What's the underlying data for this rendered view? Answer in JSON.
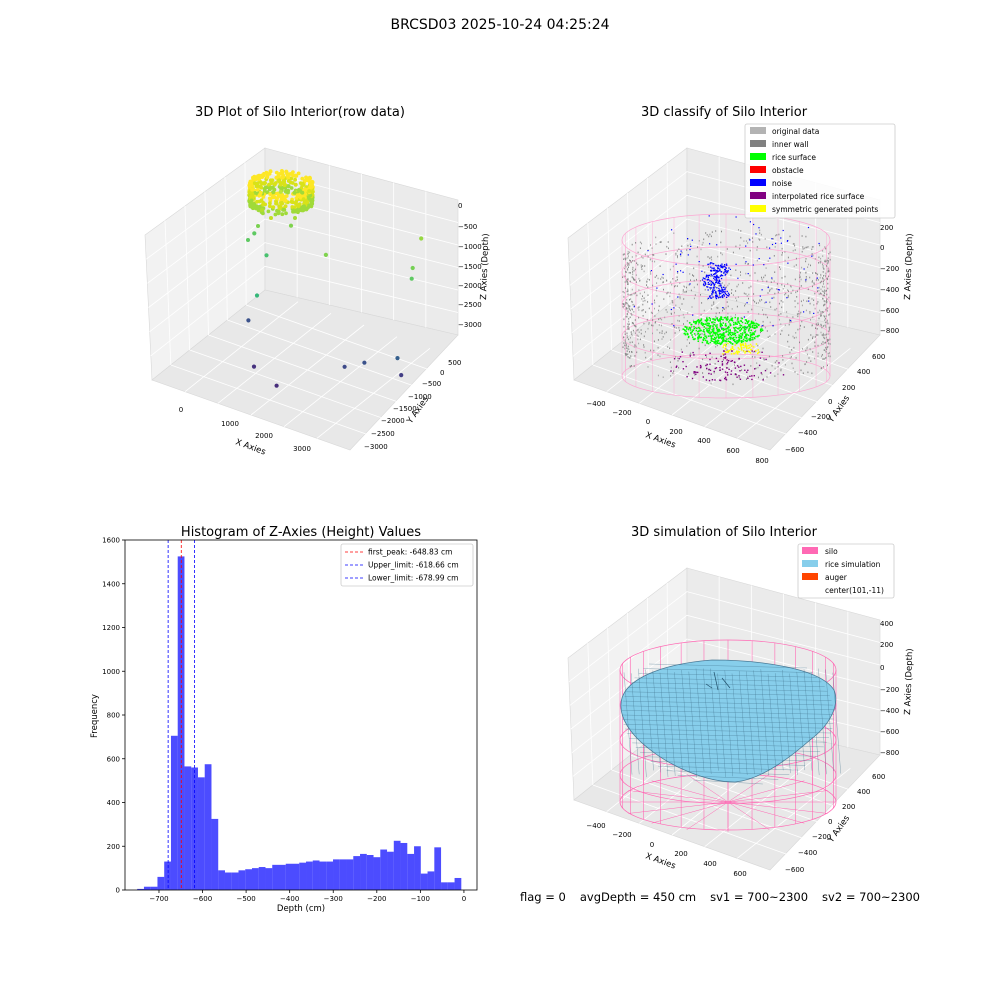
{
  "figure": {
    "title": "BRCSD03 2025-10-24 04:25:24"
  },
  "status": {
    "flag": "flag = 0",
    "avg_depth": "avgDepth = 450 cm",
    "sv1": "sv1 = 700~2300",
    "sv2": "sv2 = 700~2300"
  },
  "chart_data": [
    {
      "type": "scatter",
      "projection": "3d",
      "title": "3D Plot of Silo Interior(row data)",
      "xlabel": "X Axies",
      "ylabel": "Y Axies",
      "zlabel": "Z Axies (Depth)",
      "xticks": [
        "0",
        "1000",
        "2000",
        "3000"
      ],
      "yticks": [
        "500",
        "0",
        "−500",
        "−1000",
        "−1500",
        "−2000",
        "−2500",
        "−3000"
      ],
      "zticks": [
        "0",
        "−500",
        "−1000",
        "−1500",
        "−2000",
        "−2500",
        "−3000"
      ],
      "colormap": "viridis",
      "description_points": [
        {
          "x": 200,
          "y": 0,
          "z": -450,
          "c": "#bde43a"
        },
        {
          "x": 600,
          "y": -300,
          "z": -900,
          "c": "#7fd34e"
        },
        {
          "x": 1400,
          "y": -400,
          "z": -1200,
          "c": "#7fd34e"
        },
        {
          "x": 3000,
          "y": 300,
          "z": -600,
          "c": "#95d840"
        },
        {
          "x": 3000,
          "y": 0,
          "z": -1100,
          "c": "#75d054"
        },
        {
          "x": 3100,
          "y": -200,
          "z": -1200,
          "c": "#5ec962"
        },
        {
          "x": -300,
          "y": -100,
          "z": -1500,
          "c": "#5ec962"
        },
        {
          "x": 200,
          "y": -500,
          "z": -1600,
          "c": "#48c16e"
        },
        {
          "x": 300,
          "y": -1000,
          "z": -2200,
          "c": "#35b779"
        },
        {
          "x": 300,
          "y": -1300,
          "z": -2600,
          "c": "#3b528b"
        },
        {
          "x": 900,
          "y": -2100,
          "z": -3000,
          "c": "#46327e"
        },
        {
          "x": 1500,
          "y": -2300,
          "z": -3100,
          "c": "#472d7b"
        },
        {
          "x": 2400,
          "y": -1400,
          "z": -2800,
          "c": "#3e4a89"
        },
        {
          "x": 2700,
          "y": -1200,
          "z": -2700,
          "c": "#3b528b"
        },
        {
          "x": 3100,
          "y": -700,
          "z": -2700,
          "c": "#355f8d"
        },
        {
          "x": 3300,
          "y": -900,
          "z": -2900,
          "c": "#433e85"
        }
      ]
    },
    {
      "type": "scatter",
      "projection": "3d",
      "title": "3D classify of Silo Interior",
      "xlabel": "X Axies",
      "ylabel": "Y Axies",
      "zlabel": "Z Axies (Depth)",
      "xticks": [
        "−400",
        "−200",
        "0",
        "200",
        "400",
        "600",
        "800"
      ],
      "yticks": [
        "600",
        "400",
        "200",
        "0",
        "−200",
        "−400",
        "−600"
      ],
      "zticks": [
        "200",
        "0",
        "−200",
        "−400",
        "−600",
        "−800"
      ],
      "legend_position": "top-right",
      "legend": [
        {
          "label": "original data",
          "color": "#b3b3b3"
        },
        {
          "label": "inner wall",
          "color": "#808080"
        },
        {
          "label": "rice surface",
          "color": "#00ff00"
        },
        {
          "label": "obstacle",
          "color": "#ff0000"
        },
        {
          "label": "noise",
          "color": "#0000ff"
        },
        {
          "label": "interpolated rice surface",
          "color": "#800080"
        },
        {
          "label": "symmetric generated points",
          "color": "#ffff00"
        }
      ]
    },
    {
      "type": "bar",
      "title": "Histogram of Z-Axies (Height) Values",
      "xlabel": "Depth (cm)",
      "ylabel": "Frequency",
      "xlim": [
        -778,
        30
      ],
      "ylim": [
        0,
        1600
      ],
      "xticks": [
        -700,
        -600,
        -500,
        -400,
        -300,
        -200,
        -100,
        0
      ],
      "yticks": [
        0,
        200,
        400,
        600,
        800,
        1000,
        1200,
        1400,
        1600
      ],
      "bar_color": "#0000ff",
      "bin_width": 15.5,
      "bins_start": [
        -750,
        -734.5,
        -719,
        -703.5,
        -688,
        -672.5,
        -657,
        -641.5,
        -626,
        -610.5,
        -595,
        -579.5,
        -564,
        -548.5,
        -533,
        -517.5,
        -502,
        -486.5,
        -471,
        -455.5,
        -440,
        -424.5,
        -409,
        -393.5,
        -378,
        -362.5,
        -347,
        -331.5,
        -316,
        -300.5,
        -285,
        -269.5,
        -254,
        -238.5,
        -223,
        -207.5,
        -192,
        -176.5,
        -161,
        -145.5,
        -130,
        -114.5,
        -99,
        -83.5,
        -68,
        -52.5,
        -37,
        -21.5,
        -6
      ],
      "values": [
        5,
        15,
        15,
        60,
        130,
        705,
        1525,
        565,
        560,
        515,
        575,
        325,
        90,
        80,
        80,
        90,
        95,
        100,
        105,
        100,
        115,
        115,
        120,
        120,
        125,
        130,
        135,
        130,
        130,
        140,
        140,
        140,
        155,
        165,
        160,
        150,
        185,
        175,
        225,
        215,
        165,
        200,
        75,
        85,
        195,
        35,
        35,
        55,
        0
      ],
      "lines": [
        {
          "label": "first_peak: -648.83 cm",
          "x": -648.83,
          "color": "#ff0000"
        },
        {
          "label": "Upper_limit: -618.66 cm",
          "x": -618.66,
          "color": "#0000ff"
        },
        {
          "label": "Lower_limit: -678.99 cm",
          "x": -678.99,
          "color": "#0000ff"
        }
      ],
      "legend_position": "top-right"
    },
    {
      "type": "surface",
      "projection": "3d",
      "title": "3D simulation of Silo Interior",
      "xlabel": "X Axies",
      "ylabel": "Y Axies",
      "zlabel": "Z Axies (Depth)",
      "xticks": [
        "−400",
        "−200",
        "0",
        "200",
        "400",
        "600"
      ],
      "yticks": [
        "600",
        "400",
        "200",
        "0",
        "−200",
        "−400",
        "−600"
      ],
      "zticks": [
        "400",
        "200",
        "0",
        "−200",
        "−400",
        "−600",
        "−800"
      ],
      "legend_position": "top-right",
      "legend": [
        {
          "label": "silo",
          "color": "#ff69b4"
        },
        {
          "label": "rice simulation",
          "color": "#87ceeb"
        },
        {
          "label": "auger",
          "color": "#ff4500"
        },
        {
          "label": "center(101,-11)",
          "color": ""
        }
      ]
    }
  ]
}
